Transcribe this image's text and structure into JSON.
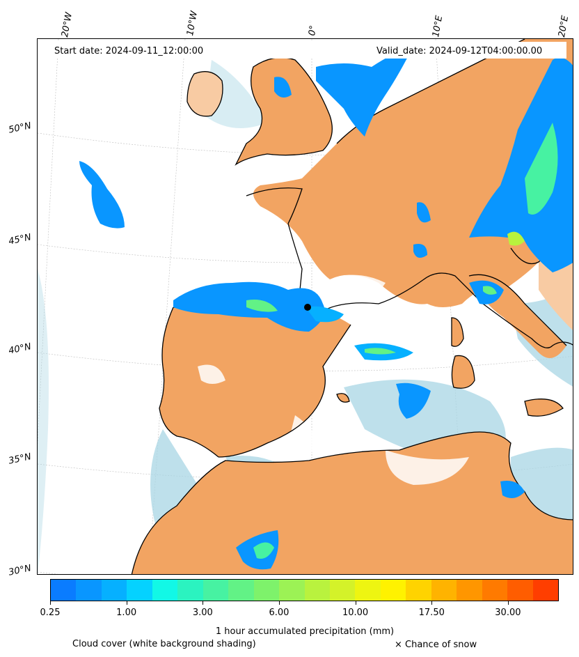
{
  "map": {
    "start_date": "Start date: 2024-09-11_12:00:00",
    "valid_date": "Valid_date: 2024-09-12T04:00:00.00",
    "lon_labels": [
      "20°W",
      "10°W",
      "0°",
      "10°E",
      "20°E"
    ],
    "lat_labels": [
      "50°N",
      "45°N",
      "40°N",
      "35°N",
      "30°N"
    ],
    "land_color": "#f2a462",
    "cloud_color": "#a8d6e4",
    "coast_color": "#000000"
  },
  "colorbar": {
    "colors": [
      "#0a7cff",
      "#0996ff",
      "#06b0ff",
      "#05d2ff",
      "#12f8e6",
      "#2bf3c0",
      "#47f2a2",
      "#62f286",
      "#7ef26b",
      "#9cf255",
      "#b9f23e",
      "#d4f229",
      "#eef511",
      "#fff200",
      "#ffd300",
      "#ffb300",
      "#ff9600",
      "#ff7a00",
      "#ff5d00",
      "#ff3e00"
    ],
    "ticks": [
      "0.25",
      "1.00",
      "3.00",
      "6.00",
      "10.00",
      "17.50",
      "30.00"
    ],
    "label": "1 hour accumulated precipitation (mm)"
  },
  "footer": {
    "cloud_note": "Cloud cover (white background shading)",
    "snow_note": "× Chance of snow"
  }
}
